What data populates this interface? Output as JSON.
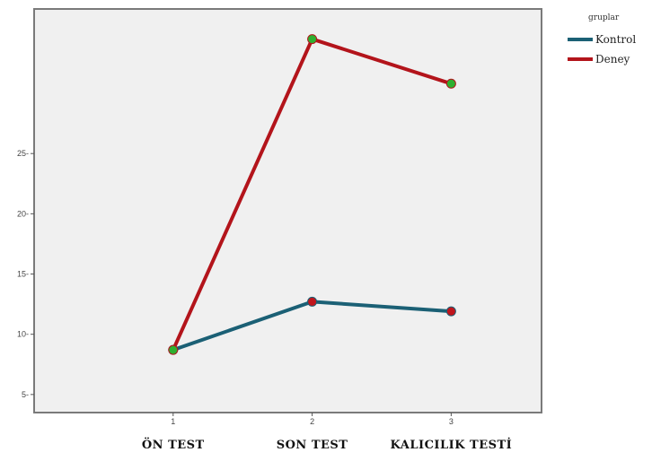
{
  "chart_data": {
    "type": "line",
    "x": [
      1,
      2,
      3
    ],
    "x_tick_labels": [
      "1",
      "2",
      "3"
    ],
    "categories": [
      "ÖN TEST",
      "SON TEST",
      "KALICILIK TESTİ"
    ],
    "ylim": [
      3.5,
      37
    ],
    "y_ticks": [
      5,
      10,
      15,
      20,
      25
    ],
    "y_tick_labels": [
      "5-",
      "10-",
      "15-",
      "20-",
      "25-"
    ],
    "grid": false,
    "legend_position": "top-right",
    "legend_title": "gruplar",
    "series": [
      {
        "name": "Kontrol",
        "values": [
          8.7,
          12.7,
          11.9
        ],
        "color": "#1b6075",
        "marker_color": "#c0151c"
      },
      {
        "name": "Deney",
        "values": [
          8.7,
          34.5,
          30.8
        ],
        "color": "#b3141b",
        "marker_color": "#2eb030"
      }
    ],
    "colors": {
      "plot_background": "#f0f0f0",
      "plot_border": "#7a7a7a"
    }
  }
}
